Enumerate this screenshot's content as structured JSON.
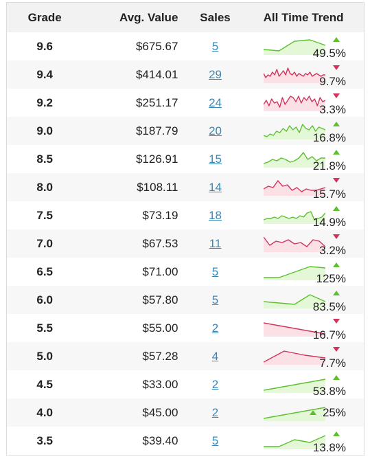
{
  "headers": {
    "grade": "Grade",
    "avg_value": "Avg. Value",
    "sales": "Sales",
    "trend": "All Time Trend"
  },
  "colors": {
    "up": "#5cc030",
    "down": "#d1345b",
    "up_fill": "#e4f7d7",
    "down_fill": "#fbe0e6",
    "link": "#3a86b4"
  },
  "rows": [
    {
      "grade": "9.6",
      "avg": "$675.67",
      "sales": "5",
      "direction": "up",
      "change": "49.5%",
      "trend": [
        3,
        2,
        9,
        10,
        6
      ]
    },
    {
      "grade": "9.4",
      "avg": "$414.01",
      "sales": "29",
      "direction": "down",
      "change": "9.7%",
      "trend": [
        6,
        3,
        5,
        4,
        7,
        5,
        9,
        4,
        6,
        8,
        5,
        10,
        6,
        5,
        7,
        4,
        6,
        5,
        4,
        6,
        5,
        7,
        4,
        5,
        6,
        5,
        4,
        5,
        5
      ]
    },
    {
      "grade": "9.2",
      "avg": "$251.17",
      "sales": "24",
      "direction": "down",
      "change": "3.3%",
      "trend": [
        4,
        7,
        3,
        8,
        5,
        6,
        2,
        9,
        4,
        7,
        10,
        9,
        6,
        10,
        5,
        9,
        7,
        10,
        6,
        8,
        3,
        9,
        6,
        7
      ]
    },
    {
      "grade": "9.0",
      "avg": "$187.79",
      "sales": "20",
      "direction": "up",
      "change": "16.8%",
      "trend": [
        2,
        1,
        3,
        2,
        5,
        4,
        7,
        5,
        9,
        6,
        8,
        4,
        10,
        7,
        6,
        9,
        5,
        8,
        7,
        6
      ]
    },
    {
      "grade": "8.5",
      "avg": "$126.91",
      "sales": "15",
      "direction": "up",
      "change": "21.8%",
      "trend": [
        2,
        3,
        5,
        4,
        6,
        5,
        3,
        4,
        6,
        10,
        5,
        7,
        4,
        6,
        6
      ]
    },
    {
      "grade": "8.0",
      "avg": "$108.11",
      "sales": "14",
      "direction": "down",
      "change": "15.7%",
      "trend": [
        4,
        6,
        5,
        10,
        6,
        7,
        3,
        5,
        2,
        4,
        3,
        3,
        4,
        5
      ]
    },
    {
      "grade": "7.5",
      "avg": "$73.19",
      "sales": "18",
      "direction": "up",
      "change": "14.9%",
      "trend": [
        2,
        3,
        3,
        4,
        3,
        5,
        4,
        3,
        4,
        3,
        5,
        4,
        7,
        8,
        2,
        3,
        4,
        7
      ]
    },
    {
      "grade": "7.0",
      "avg": "$67.53",
      "sales": "11",
      "direction": "down",
      "change": "3.2%",
      "trend": [
        10,
        4,
        7,
        6,
        8,
        5,
        6,
        3,
        8,
        7,
        3
      ]
    },
    {
      "grade": "6.5",
      "avg": "$71.00",
      "sales": "5",
      "direction": "up",
      "change": "125%",
      "trend": [
        1,
        1,
        5,
        9,
        8
      ]
    },
    {
      "grade": "6.0",
      "avg": "$57.80",
      "sales": "5",
      "direction": "up",
      "change": "83.5%",
      "trend": [
        4,
        3,
        2,
        9,
        4
      ]
    },
    {
      "grade": "5.5",
      "avg": "$55.00",
      "sales": "2",
      "direction": "down",
      "change": "16.7%",
      "trend": [
        9,
        1
      ]
    },
    {
      "grade": "5.0",
      "avg": "$57.28",
      "sales": "4",
      "direction": "down",
      "change": "7.7%",
      "trend": [
        1,
        9,
        6,
        4
      ]
    },
    {
      "grade": "4.5",
      "avg": "$33.00",
      "sales": "2",
      "direction": "up",
      "change": "53.8%",
      "trend": [
        1,
        9
      ]
    },
    {
      "grade": "4.0",
      "avg": "$45.00",
      "sales": "2",
      "direction": "up",
      "change": "25%",
      "trend": [
        1,
        9
      ]
    },
    {
      "grade": "3.5",
      "avg": "$39.40",
      "sales": "5",
      "direction": "up",
      "change": "13.8%",
      "trend": [
        1,
        1,
        6,
        4,
        9
      ]
    }
  ]
}
